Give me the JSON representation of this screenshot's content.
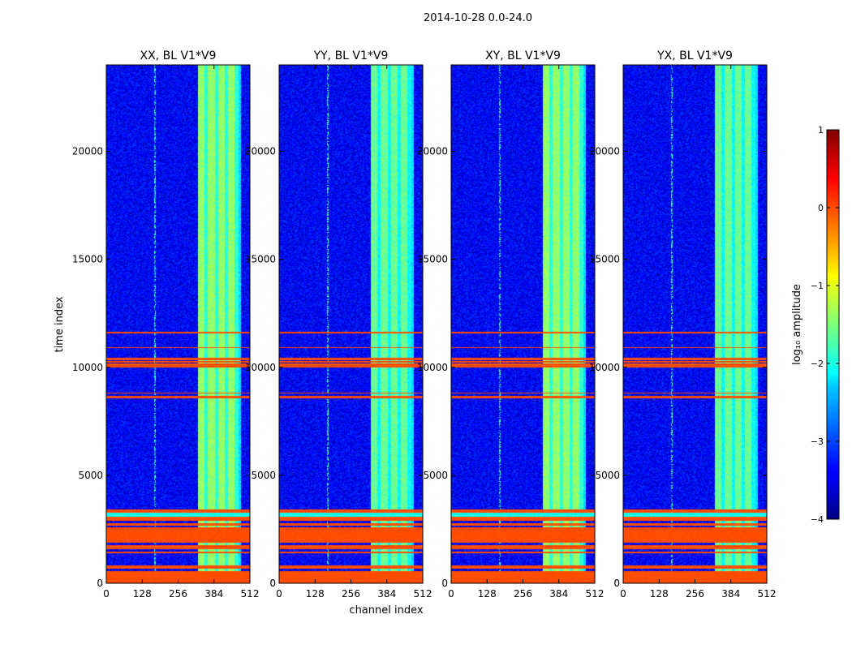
{
  "chart_data": {
    "type": "heatmap",
    "title": "2014-10-28 0.0-24.0",
    "xlabel": "channel index",
    "ylabel": "time index",
    "xlim": [
      0,
      512
    ],
    "ylim": [
      0,
      24000
    ],
    "x_ticks": [
      0,
      128,
      256,
      384,
      512
    ],
    "y_ticks": [
      0,
      5000,
      10000,
      15000,
      20000
    ],
    "panels": [
      {
        "title": "XX, BL V1*V9"
      },
      {
        "title": "YY, BL V1*V9"
      },
      {
        "title": "XY, BL V1*V9"
      },
      {
        "title": "YX, BL V1*V9"
      }
    ],
    "colorbar": {
      "label": "log₁₀ amplitude",
      "range": [
        -4,
        1
      ],
      "ticks": [
        {
          "value": 1,
          "label": "1"
        },
        {
          "value": 0,
          "label": "0"
        },
        {
          "value": -1,
          "label": "−1"
        },
        {
          "value": -2,
          "label": "−2"
        },
        {
          "value": -3,
          "label": "−3"
        },
        {
          "value": -4,
          "label": "−4"
        }
      ]
    },
    "rfi_bands_time": [
      [
        0,
        600
      ],
      [
        700,
        850
      ],
      [
        1400,
        1500
      ],
      [
        1600,
        1800
      ],
      [
        1900,
        2600
      ],
      [
        2700,
        2800
      ],
      [
        2900,
        3100
      ],
      [
        3300,
        3450
      ],
      [
        8600,
        8700
      ],
      [
        8800,
        8850
      ],
      [
        10000,
        10200
      ],
      [
        10250,
        10300
      ],
      [
        10350,
        10450
      ],
      [
        10900,
        10950
      ],
      [
        11600,
        11650
      ]
    ],
    "rfi_value": 0,
    "cyan_bands_time": [
      [
        3100,
        3300
      ]
    ],
    "background_level": -3.4,
    "strong_channel_range": [
      325,
      470
    ],
    "strong_level": -1.4
  }
}
